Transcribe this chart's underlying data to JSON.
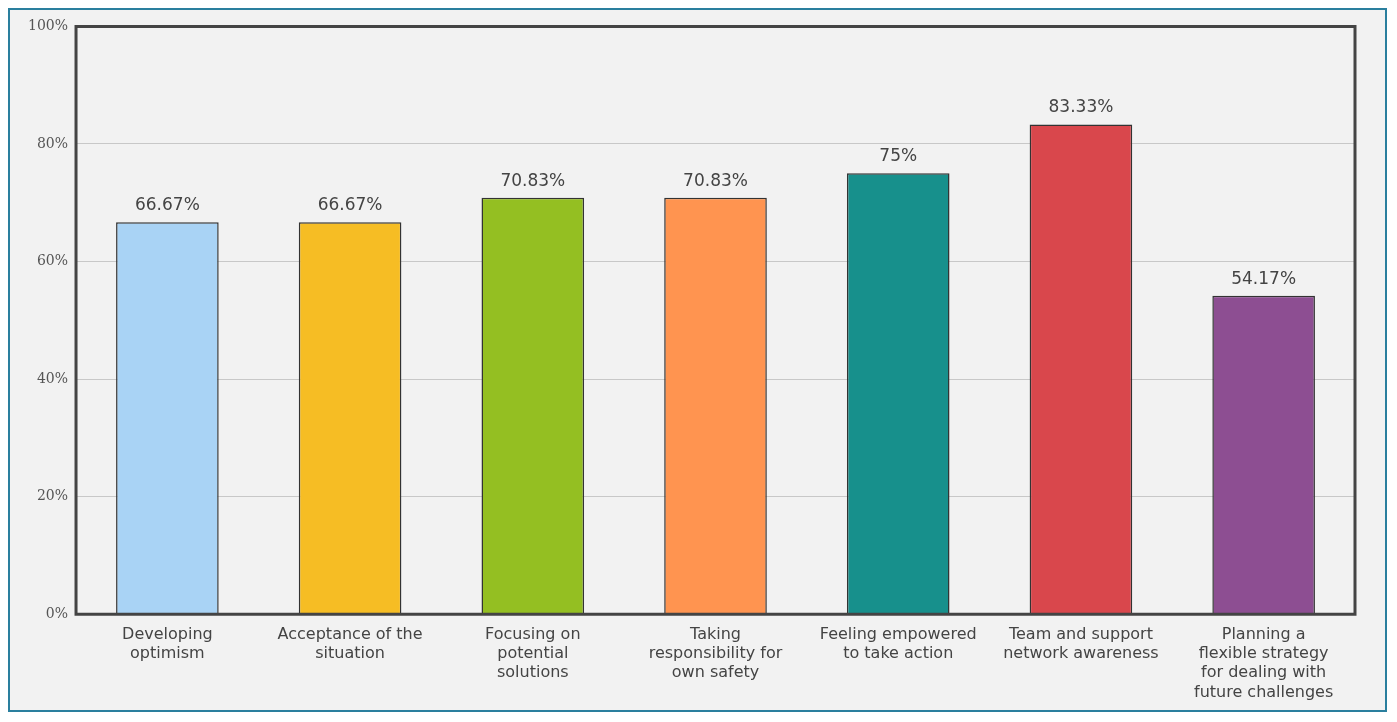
{
  "chart_data": {
    "type": "bar",
    "categories": [
      "Developing optimism",
      "Acceptance of the situation",
      "Focusing on potential solutions",
      "Taking responsibility for own safety",
      "Feeling empowered to take action",
      "Team and support network awareness",
      "Planning a flexible strategy for dealing with future challenges"
    ],
    "values": [
      66.67,
      66.67,
      70.83,
      70.83,
      75,
      83.33,
      54.17
    ],
    "colors": [
      "#a9d3f5",
      "#f6bd24",
      "#94bf22",
      "#ff9450",
      "#17908c",
      "#d9474c",
      "#8d4e92"
    ],
    "value_labels": [
      "66.67%",
      "66.67%",
      "70.83%",
      "70.83%",
      "75%",
      "83.33%",
      "54.17%"
    ],
    "ylim": [
      0,
      100
    ],
    "yticks": [
      {
        "value": 0,
        "label": "0%"
      },
      {
        "value": 20,
        "label": "20%"
      },
      {
        "value": 40,
        "label": "40%"
      },
      {
        "value": 60,
        "label": "60%"
      },
      {
        "value": 80,
        "label": "80%"
      },
      {
        "value": 100,
        "label": "100%"
      }
    ],
    "grid": "y"
  }
}
